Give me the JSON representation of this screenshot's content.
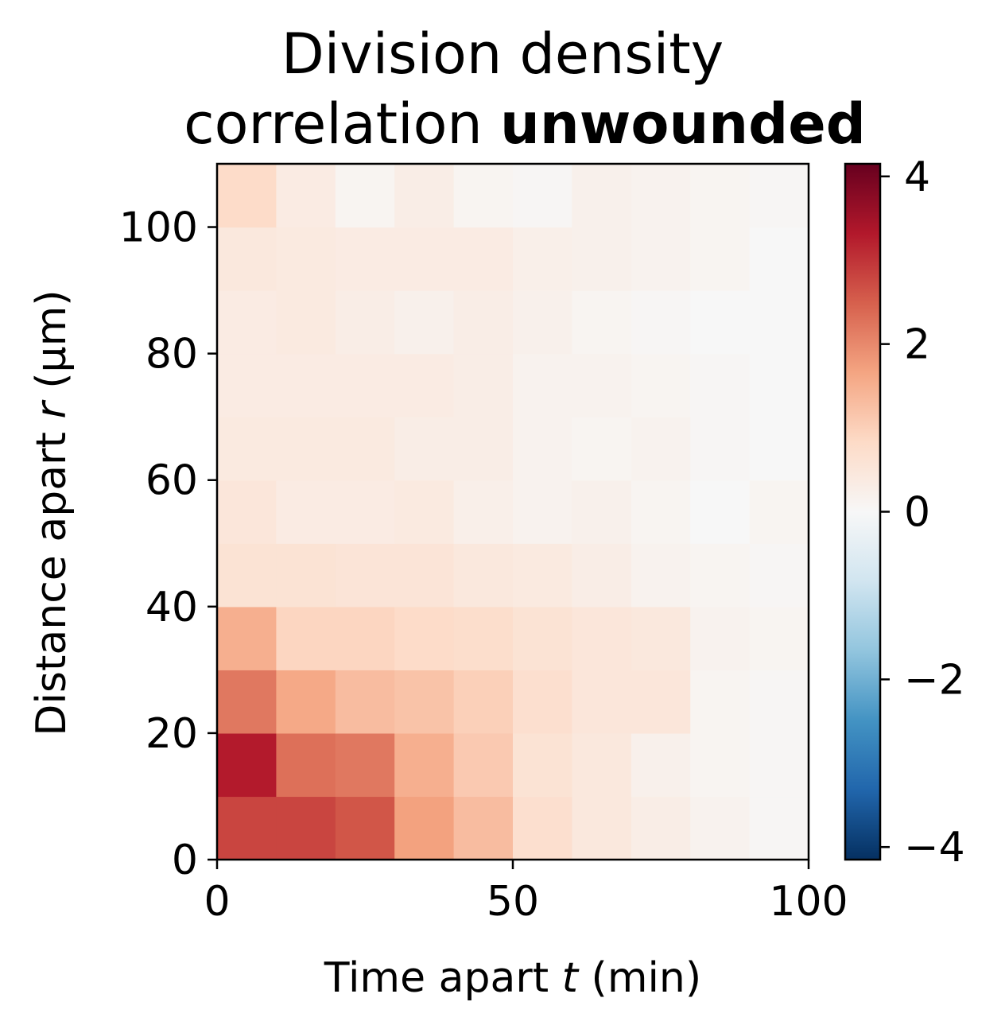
{
  "chart_data": {
    "type": "heatmap",
    "title_line1": "Division density",
    "title_line2_prefix": "correlation ",
    "title_line2_bold": "unwounded",
    "xlabel_prefix": "Time apart ",
    "xlabel_var": "t",
    "xlabel_suffix": " (min)",
    "ylabel_prefix": "Distance apart ",
    "ylabel_var": "r",
    "ylabel_suffix": " (μm)",
    "xlim": [
      0,
      100
    ],
    "ylim": [
      0,
      110
    ],
    "x_bin_width": 10,
    "y_bin_width": 10,
    "x_ticks": [
      0,
      50,
      100
    ],
    "y_ticks": [
      0,
      20,
      40,
      60,
      80,
      100
    ],
    "colorbar": {
      "colormap": "RdBu_r",
      "range": [
        -4.15,
        4.15
      ],
      "ticks": [
        -4,
        -2,
        0,
        2,
        4
      ]
    },
    "values": [
      [
        2.8,
        2.8,
        2.6,
        1.7,
        1.3,
        0.7,
        0.45,
        0.3,
        0.15,
        0.05
      ],
      [
        3.3,
        2.3,
        2.2,
        1.5,
        1.1,
        0.6,
        0.45,
        0.2,
        0.1,
        0.05
      ],
      [
        2.2,
        1.6,
        1.3,
        1.2,
        1.0,
        0.7,
        0.5,
        0.5,
        0.1,
        0.05
      ],
      [
        1.5,
        0.9,
        0.9,
        0.8,
        0.75,
        0.6,
        0.5,
        0.45,
        0.15,
        0.1
      ],
      [
        0.6,
        0.6,
        0.55,
        0.55,
        0.45,
        0.4,
        0.3,
        0.15,
        0.1,
        0.05
      ],
      [
        0.5,
        0.35,
        0.35,
        0.4,
        0.25,
        0.15,
        0.2,
        0.1,
        0.0,
        0.1
      ],
      [
        0.4,
        0.4,
        0.4,
        0.3,
        0.3,
        0.15,
        0.1,
        0.15,
        0.05,
        0.0
      ],
      [
        0.35,
        0.35,
        0.35,
        0.35,
        0.3,
        0.15,
        0.15,
        0.1,
        0.05,
        0.0
      ],
      [
        0.35,
        0.4,
        0.3,
        0.2,
        0.3,
        0.2,
        0.1,
        0.05,
        0.0,
        0.0
      ],
      [
        0.45,
        0.4,
        0.35,
        0.35,
        0.35,
        0.25,
        0.2,
        0.15,
        0.1,
        0.0
      ],
      [
        0.8,
        0.35,
        0.1,
        0.3,
        0.1,
        0.05,
        0.2,
        0.15,
        0.1,
        0.05
      ]
    ]
  }
}
